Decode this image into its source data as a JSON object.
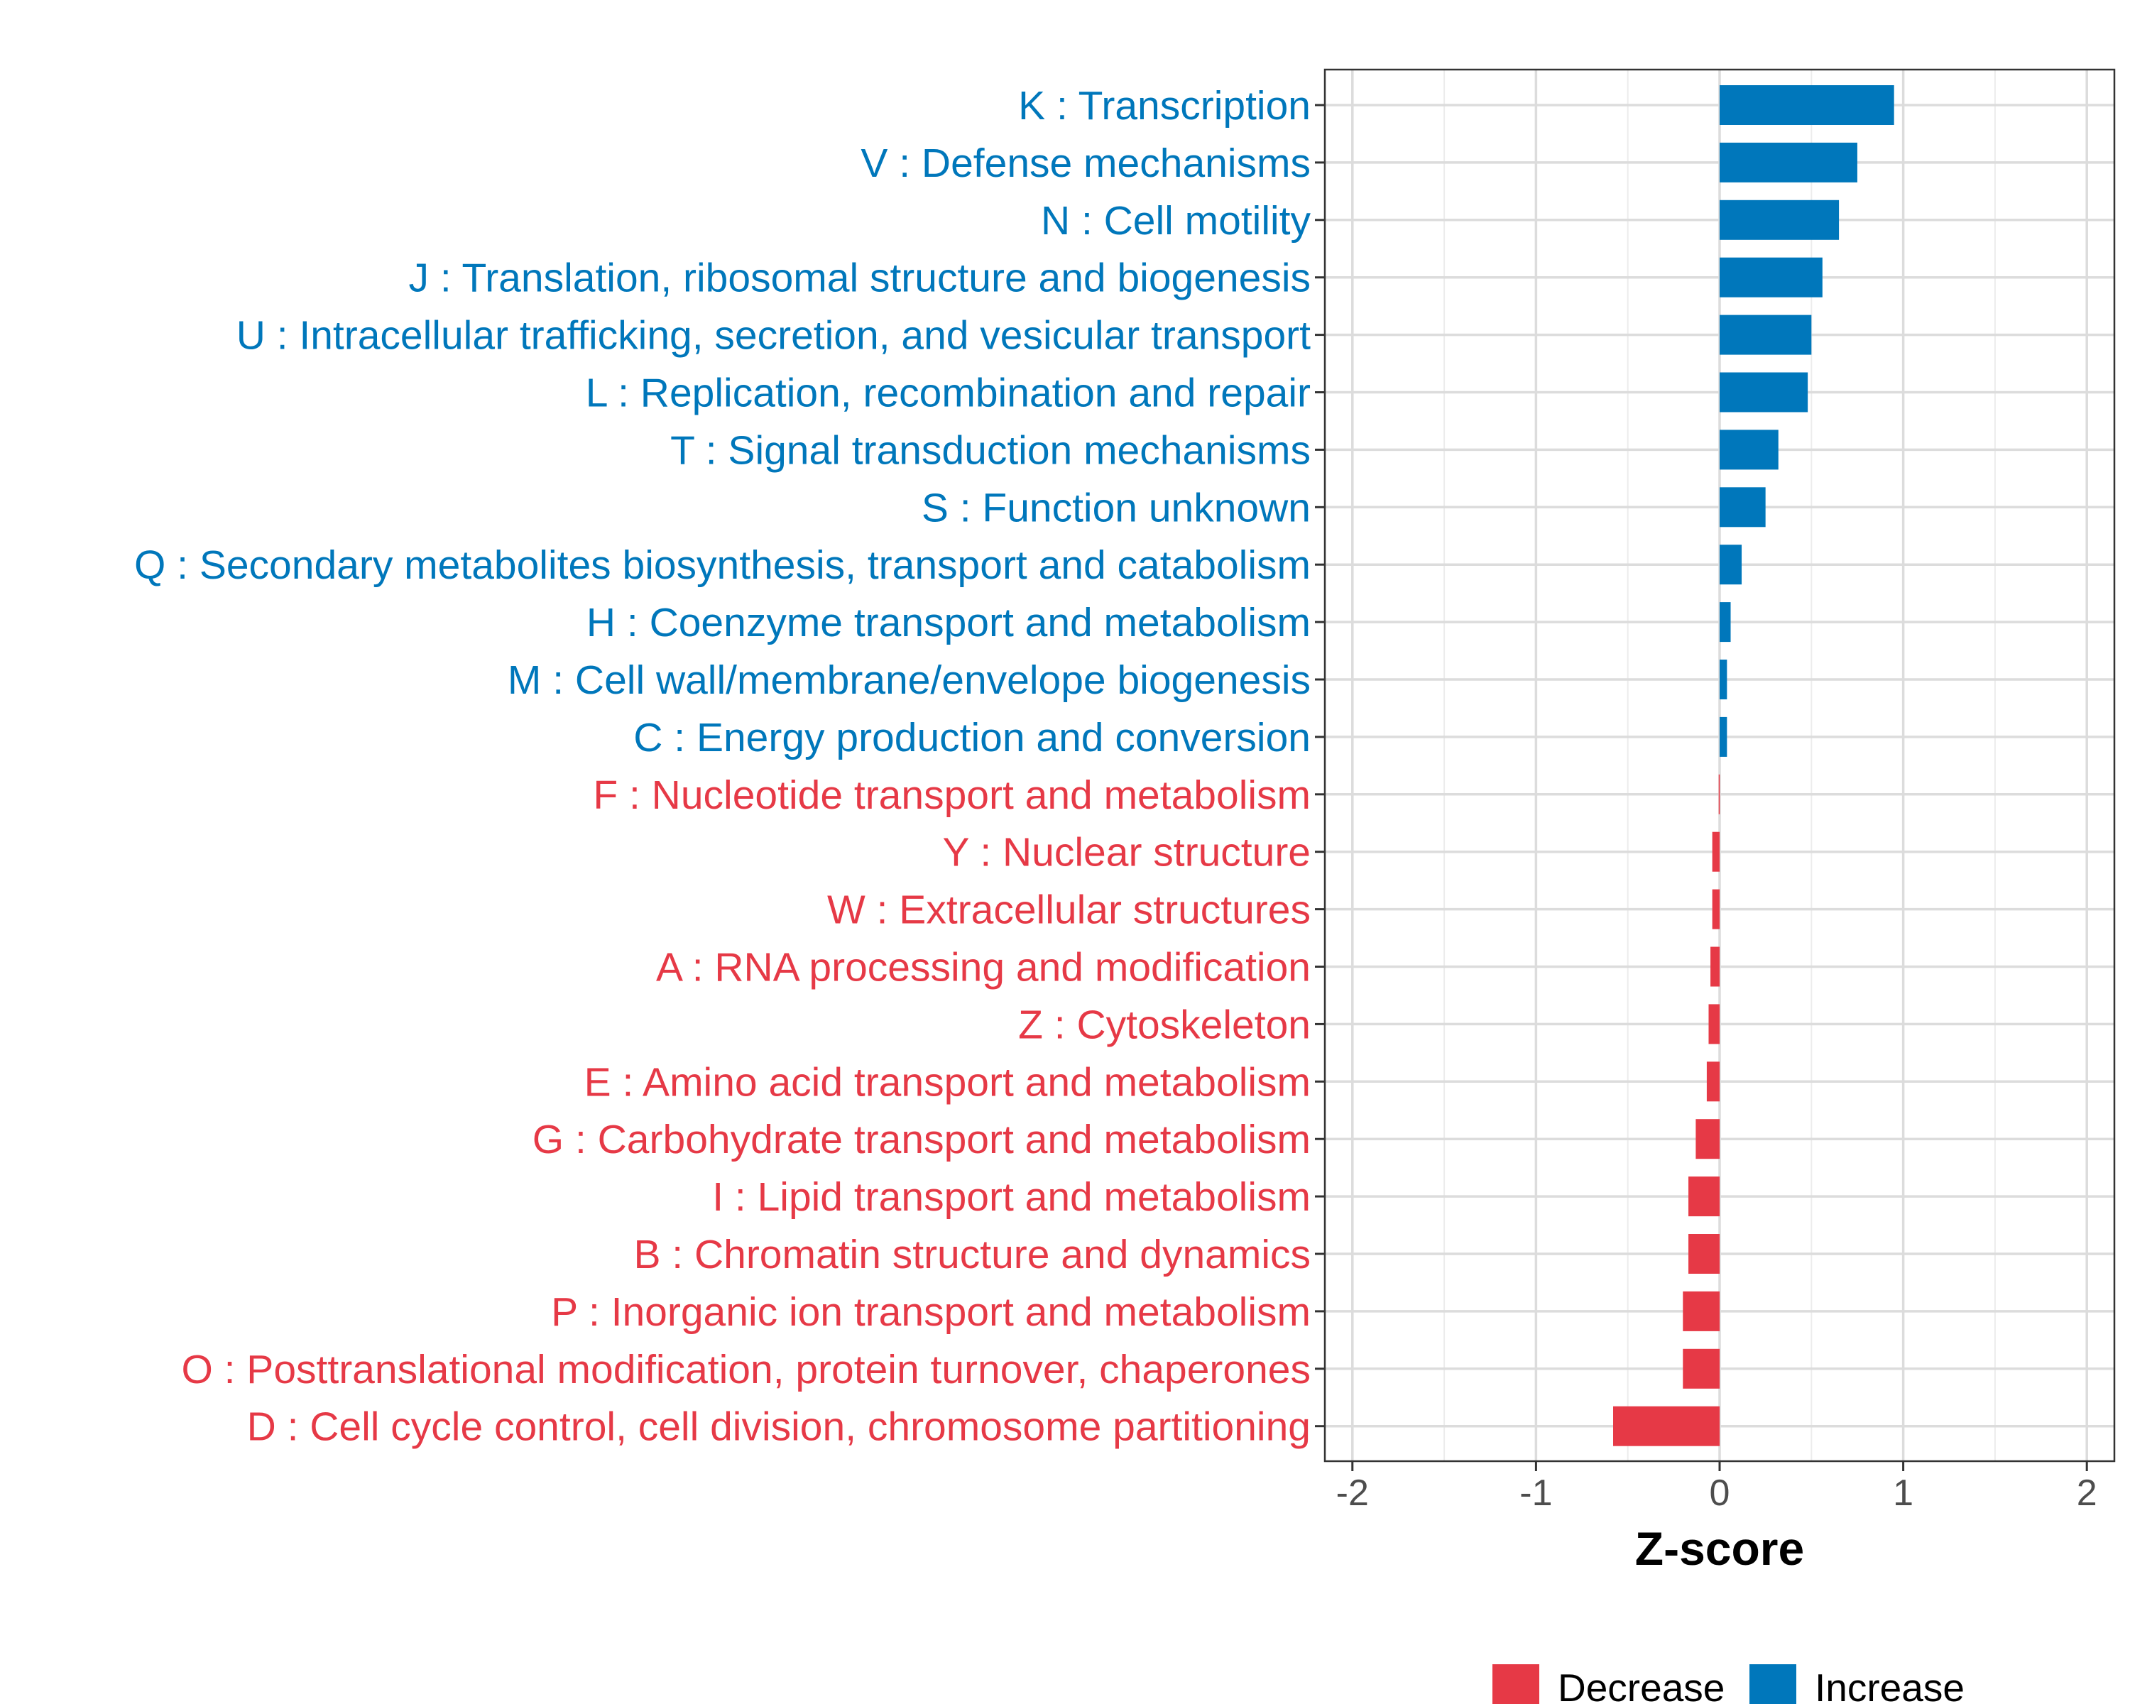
{
  "chart_data": {
    "type": "bar",
    "orientation": "horizontal",
    "title": "",
    "xlabel": "Z-score",
    "ylabel": "",
    "xlim": [
      -2.15,
      2.15
    ],
    "xticks": [
      -2,
      -1,
      0,
      1,
      2
    ],
    "xtick_labels": [
      "-2",
      "-1",
      "0",
      "1",
      "2"
    ],
    "grid": true,
    "legend_position": "bottom",
    "colors": {
      "Increase": "#0077bb",
      "Decrease": "#e63946"
    },
    "legend": [
      {
        "label": "Decrease",
        "color": "#e63946"
      },
      {
        "label": "Increase",
        "color": "#0077bb"
      }
    ],
    "categories": [
      "K : Transcription",
      "V : Defense mechanisms",
      "N : Cell motility",
      "J : Translation, ribosomal structure and biogenesis",
      "U : Intracellular trafficking, secretion, and vesicular transport",
      "L : Replication, recombination and repair",
      "T : Signal transduction mechanisms",
      "S : Function unknown",
      "Q : Secondary metabolites biosynthesis, transport and catabolism",
      "H : Coenzyme transport and metabolism",
      "M : Cell wall/membrane/envelope biogenesis",
      "C : Energy production and conversion",
      "F : Nucleotide transport and metabolism",
      "Y : Nuclear structure",
      "W : Extracellular structures",
      "A : RNA processing and modification",
      "Z : Cytoskeleton",
      "E : Amino acid transport and metabolism",
      "G : Carbohydrate transport and metabolism",
      "I : Lipid transport and metabolism",
      "B : Chromatin structure and dynamics",
      "P : Inorganic ion transport and metabolism",
      "O : Posttranslational modification, protein turnover, chaperones",
      "D : Cell cycle control, cell division, chromosome partitioning"
    ],
    "values": [
      0.95,
      0.75,
      0.65,
      0.56,
      0.5,
      0.48,
      0.32,
      0.25,
      0.12,
      0.06,
      0.04,
      0.04,
      -0.005,
      -0.04,
      -0.04,
      -0.05,
      -0.06,
      -0.07,
      -0.13,
      -0.17,
      -0.17,
      -0.2,
      -0.2,
      -0.58
    ],
    "groups": [
      "Increase",
      "Increase",
      "Increase",
      "Increase",
      "Increase",
      "Increase",
      "Increase",
      "Increase",
      "Increase",
      "Increase",
      "Increase",
      "Increase",
      "Decrease",
      "Decrease",
      "Decrease",
      "Decrease",
      "Decrease",
      "Decrease",
      "Decrease",
      "Decrease",
      "Decrease",
      "Decrease",
      "Decrease",
      "Decrease"
    ]
  }
}
